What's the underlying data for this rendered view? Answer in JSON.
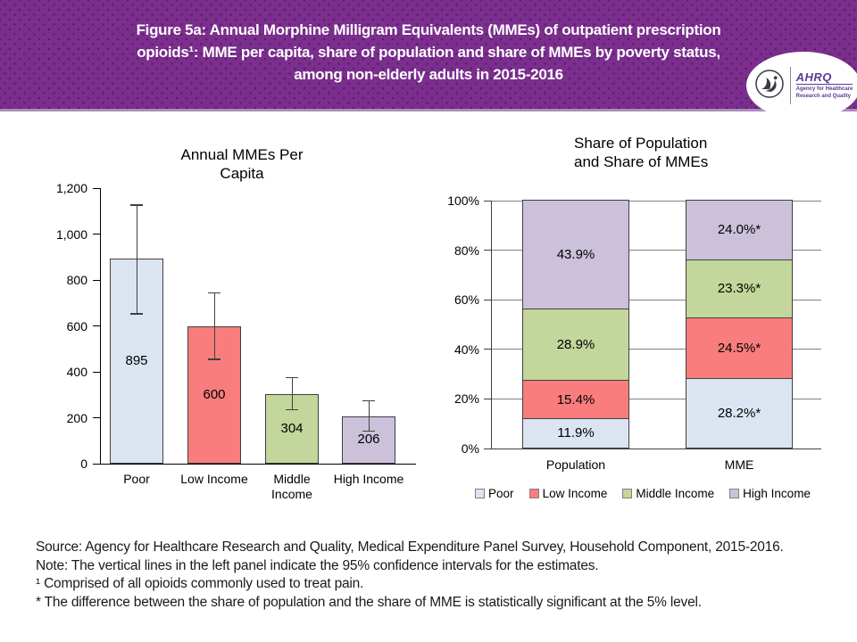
{
  "header": {
    "title_lines": [
      "Figure 5a: Annual Morphine Milligram Equivalents (MMEs) of outpatient prescription",
      "opioids¹: MME per capita, share of population and share of MMEs by poverty status,",
      "among non-elderly adults in 2015-2016"
    ],
    "logo": {
      "org": "AHRQ",
      "tagline_line1": "Agency for Healthcare",
      "tagline_line2": "Research and Quality"
    }
  },
  "colors": {
    "header_bg": "#7b2e8d",
    "header_dot": "#5a1f66",
    "series": [
      "#DBE5F1",
      "#FA7D7D",
      "#C3D69B",
      "#CCC1DA"
    ],
    "bar_border": "#404040",
    "axis": "#000000",
    "gridline": "#808080",
    "error_bar": "#404040"
  },
  "chart_data": [
    {
      "type": "bar",
      "title": "Annual MMEs Per Capita",
      "title_lines": [
        "Annual MMEs Per",
        "Capita"
      ],
      "categories": [
        "Poor",
        "Low Income",
        "Middle Income",
        "High Income"
      ],
      "values": [
        895,
        600,
        304,
        206
      ],
      "value_labels": [
        "895",
        "600",
        "304",
        "206"
      ],
      "ci_95": [
        [
          655,
          1125
        ],
        [
          458,
          742
        ],
        [
          237,
          373
        ],
        [
          144,
          272
        ]
      ],
      "colors": [
        "#DBE5F1",
        "#FA7D7D",
        "#C3D69B",
        "#CCC1DA"
      ],
      "ylim": [
        0,
        1200
      ],
      "yticks": [
        "0",
        "200",
        "400",
        "600",
        "800",
        "1,000",
        "1,200"
      ],
      "xlabel": "",
      "ylabel": "",
      "grid": false,
      "error_bars": true
    },
    {
      "type": "stacked-bar",
      "title": "Share of Population and Share of MMEs",
      "title_lines": [
        "Share of Population",
        "and Share of MMEs"
      ],
      "categories": [
        "Population",
        "MME"
      ],
      "series": [
        {
          "name": "Poor",
          "values": [
            11.9,
            28.2
          ],
          "labels": [
            "11.9%",
            "28.2%*"
          ]
        },
        {
          "name": "Low Income",
          "values": [
            15.4,
            24.5
          ],
          "labels": [
            "15.4%",
            "24.5%*"
          ]
        },
        {
          "name": "Middle Income",
          "values": [
            28.9,
            23.3
          ],
          "labels": [
            "28.9%",
            "23.3%*"
          ]
        },
        {
          "name": "High Income",
          "values": [
            43.9,
            24.0
          ],
          "labels": [
            "43.9%",
            "24.0%*"
          ]
        }
      ],
      "colors": [
        "#DBE5F1",
        "#FA7D7D",
        "#C3D69B",
        "#CCC1DA"
      ],
      "ylim": [
        0,
        100
      ],
      "yticks": [
        "0%",
        "20%",
        "40%",
        "60%",
        "80%",
        "100%"
      ],
      "grid": true,
      "legend": [
        "Poor",
        "Low Income",
        "Middle Income",
        "High Income"
      ],
      "legend_position": "bottom"
    }
  ],
  "footer": {
    "lines": [
      "Source: Agency for Healthcare Research and Quality, Medical Expenditure Panel Survey, Household Component, 2015-2016.",
      "Note: The vertical lines in the left panel indicate the 95% confidence intervals for the estimates.",
      "¹ Comprised of all opioids commonly used to treat pain.",
      "* The difference between the share of population and the share of MME is statistically significant at the 5% level."
    ]
  }
}
